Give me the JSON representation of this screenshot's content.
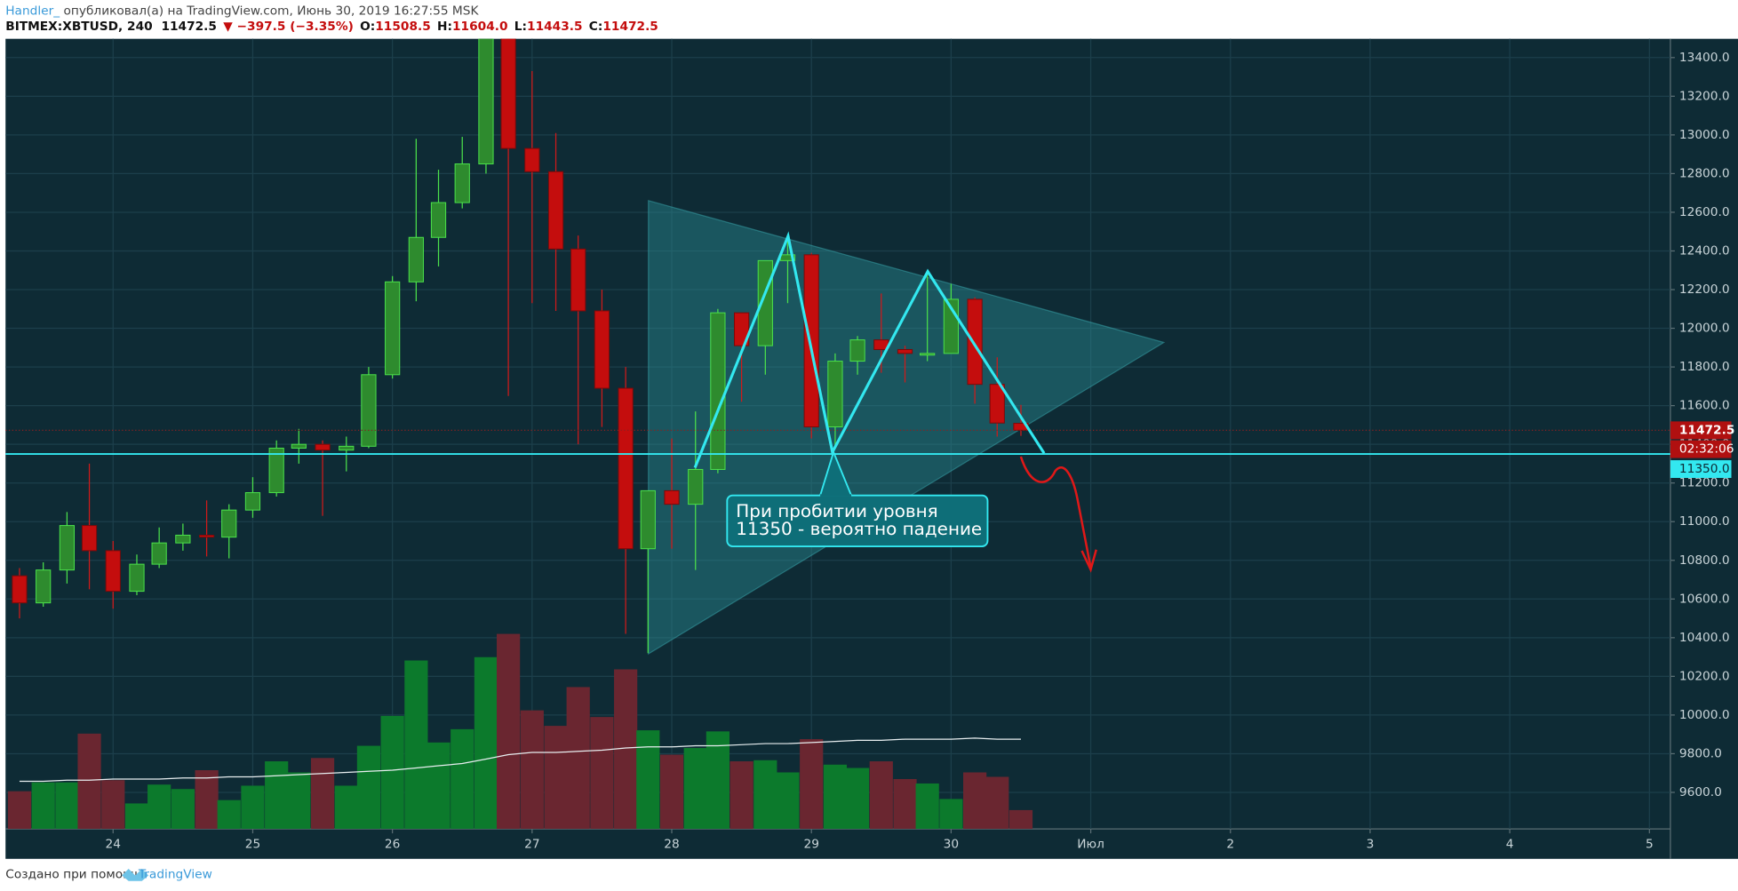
{
  "header": {
    "author": "Handler_",
    "published": " опубликовал(а) на TradingView.com, Июнь 30, 2019 16:27:55 MSK",
    "symbol": "BITMEX:XBTUSD, 240",
    "last": "11472.5",
    "change": "▼ −397.5 (−3.35%)",
    "o_label": "O:",
    "o": "11508.5",
    "h_label": "H:",
    "h": "11604.0",
    "l_label": "L:",
    "l": "11443.5",
    "c_label": "C:",
    "c": "11472.5"
  },
  "footer": {
    "text": "Создано при помощи",
    "brand": "TradingView"
  },
  "chart_data": {
    "type": "candlestick",
    "x": [
      23.33,
      23.5,
      23.67,
      23.83,
      24,
      24.17,
      24.33,
      24.5,
      24.67,
      24.83,
      25,
      25.17,
      25.33,
      25.5,
      25.67,
      25.83,
      26,
      26.17,
      26.33,
      26.5,
      26.67,
      26.83,
      27,
      27.17,
      27.33,
      27.5,
      27.67,
      27.83,
      28,
      28.17,
      28.33,
      28.5,
      28.67,
      28.83,
      29,
      29.17,
      29.33,
      29.5,
      29.67,
      29.83,
      30,
      30.17,
      30.33,
      30.5
    ],
    "open": [
      10720,
      10580,
      10750,
      10980,
      10850,
      10640,
      10780,
      10890,
      10930,
      10920,
      11060,
      11150,
      11380,
      11400,
      11370,
      11390,
      11760,
      12240,
      12470,
      12650,
      12850,
      13600,
      12930,
      12810,
      12410,
      12090,
      11690,
      10860,
      11160,
      11090,
      11270,
      12080,
      11910,
      12350,
      12380,
      11490,
      11830,
      11940,
      11890,
      11870,
      11870,
      12150,
      11710,
      11508.5
    ],
    "high": [
      10760,
      10790,
      11050,
      11300,
      10900,
      10830,
      10970,
      10990,
      11110,
      11090,
      11230,
      11420,
      11480,
      11420,
      11440,
      11800,
      12270,
      12980,
      12820,
      12990,
      13880,
      13700,
      13330,
      13010,
      12480,
      12200,
      11800,
      11160,
      11430,
      11570,
      12100,
      12080,
      12350,
      12470,
      12390,
      11870,
      11960,
      12180,
      11910,
      12280,
      12230,
      12160,
      11850,
      11604.0
    ],
    "low": [
      10500,
      10560,
      10680,
      10650,
      10550,
      10620,
      10760,
      10850,
      10820,
      10810,
      11020,
      11130,
      11300,
      11030,
      11260,
      11380,
      11740,
      12140,
      12320,
      12620,
      12800,
      11650,
      12130,
      12090,
      11400,
      11490,
      10420,
      10320,
      10860,
      10750,
      11250,
      11620,
      11760,
      12130,
      11430,
      11380,
      11760,
      11770,
      11720,
      11830,
      11870,
      11610,
      11440,
      11443.5
    ],
    "close": [
      10580,
      10750,
      10980,
      10850,
      10640,
      10780,
      10890,
      10930,
      10920,
      11060,
      11150,
      11380,
      11400,
      11370,
      11390,
      11760,
      12240,
      12470,
      12650,
      12850,
      13600,
      12930,
      12810,
      12410,
      12090,
      11690,
      10860,
      11160,
      11090,
      11270,
      12080,
      11910,
      12350,
      12380,
      11490,
      11830,
      11940,
      11890,
      11870,
      11870,
      12150,
      11710,
      11510,
      11472.5
    ],
    "volume": [
      34,
      42,
      42,
      86,
      44,
      23,
      40,
      36,
      53,
      26,
      39,
      61,
      51,
      64,
      39,
      75,
      102,
      152,
      78,
      90,
      155,
      176,
      107,
      93,
      128,
      101,
      144,
      89,
      67,
      73,
      88,
      61,
      62,
      51,
      81,
      58,
      55,
      61,
      45,
      41,
      27,
      51,
      47,
      17
    ],
    "volume_ma": [
      43,
      43,
      44,
      44,
      45,
      45,
      45,
      46,
      46,
      47,
      47,
      48,
      49,
      50,
      51,
      52,
      53,
      55,
      57,
      59,
      63,
      67,
      69,
      69,
      70,
      71,
      73,
      74,
      74,
      75,
      75,
      76,
      77,
      77,
      78,
      79,
      80,
      80,
      81,
      81,
      81,
      82,
      81,
      81
    ],
    "vlim": [
      0,
      713
    ],
    "xlim": [
      23.23,
      35.15
    ],
    "xticks": [
      24,
      25,
      26,
      27,
      28,
      29,
      30,
      {
        "value": 31,
        "label": "Июл"
      },
      {
        "value": 32,
        "label": "2"
      },
      {
        "value": 33,
        "label": "3"
      },
      {
        "value": 34,
        "label": "4"
      },
      {
        "value": 35,
        "label": "5"
      }
    ],
    "ylim": [
      9411,
      13497
    ],
    "yticks": [
      {
        "value": 9600,
        "label": "9600.0"
      },
      {
        "value": 9800,
        "label": "9800.0"
      },
      {
        "value": 10000,
        "label": "10000.0"
      },
      {
        "value": 10200,
        "label": "10200.0"
      },
      {
        "value": 10400,
        "label": "10400.0"
      },
      {
        "value": 10600,
        "label": "10600.0"
      },
      {
        "value": 10800,
        "label": "10800.0"
      },
      {
        "value": 11000,
        "label": "11000.0"
      },
      {
        "value": 11200,
        "label": "11200.0"
      },
      {
        "value": 11400,
        "label": "11400.0"
      },
      {
        "value": 11600,
        "label": "11600.0"
      },
      {
        "value": 11800,
        "label": "11800.0"
      },
      {
        "value": 12000,
        "label": "12000.0"
      },
      {
        "value": 12200,
        "label": "12200.0"
      },
      {
        "value": 12400,
        "label": "12400.0"
      },
      {
        "value": 12600,
        "label": "12600.0"
      },
      {
        "value": 12800,
        "label": "12800.0"
      },
      {
        "value": 13000,
        "label": "13000.0"
      },
      {
        "value": 13200,
        "label": "13200.0"
      },
      {
        "value": 13400,
        "label": "13400.0"
      }
    ],
    "grid": true,
    "up_color": "#2e8b2e",
    "down_color": "#c40d0d",
    "up_wick": "#4be04b",
    "down_wick": "#d01a1a",
    "volume_up_color": "#0c7a2c",
    "volume_down_color": "#6a2630",
    "last_price": {
      "value": 11472.5,
      "label": "11472.5"
    },
    "countdown": "02:32:06",
    "level": {
      "value": 11350,
      "label": "11350.0"
    },
    "annotation": [
      "При пробитии уровня",
      "11350 - вероятно падение"
    ]
  }
}
